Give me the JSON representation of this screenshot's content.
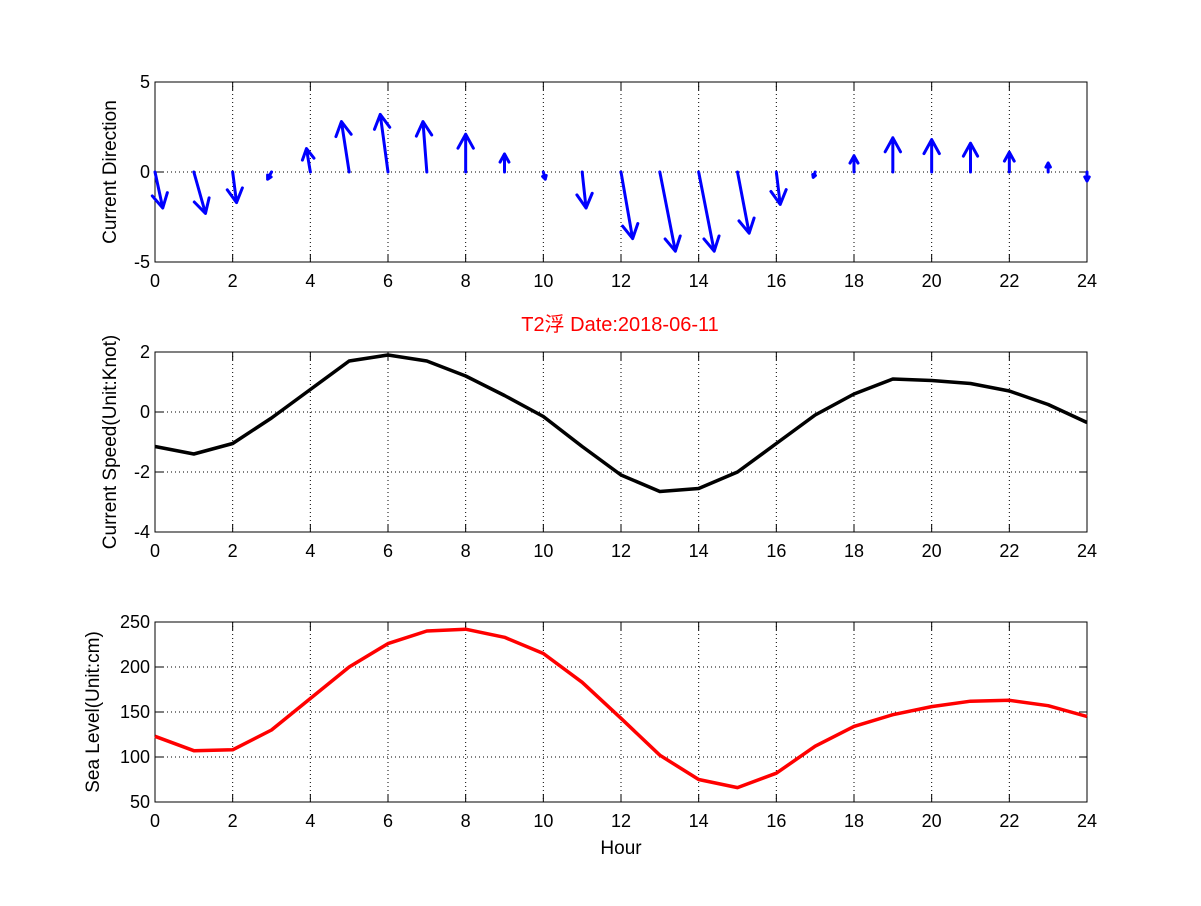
{
  "figure": {
    "title": "T2浮   Date:2018-06-11",
    "title_color": "#ff0000"
  },
  "chart_data": [
    {
      "type": "quiver",
      "ylabel": "Current Direction",
      "xlabel": "",
      "xlim": [
        0,
        24
      ],
      "ylim": [
        -5,
        5
      ],
      "xticks": [
        0,
        2,
        4,
        6,
        8,
        10,
        12,
        14,
        16,
        18,
        20,
        22,
        24
      ],
      "yticks": [
        -5,
        0,
        5
      ],
      "grid": true,
      "color": "#0000ff",
      "x": [
        0,
        1,
        2,
        3,
        4,
        5,
        6,
        7,
        8,
        9,
        10,
        11,
        12,
        13,
        14,
        15,
        16,
        17,
        18,
        19,
        20,
        21,
        22,
        23,
        24
      ],
      "u": [
        0.2,
        0.3,
        0.1,
        -0.1,
        -0.1,
        -0.2,
        -0.2,
        -0.1,
        0.0,
        0.0,
        0.05,
        0.1,
        0.3,
        0.4,
        0.4,
        0.3,
        0.1,
        -0.05,
        0.0,
        0.0,
        0.0,
        0.0,
        0.0,
        0.0,
        0.0
      ],
      "v": [
        -2.0,
        -2.3,
        -1.7,
        -0.4,
        1.3,
        2.8,
        3.2,
        2.8,
        2.1,
        1.0,
        -0.4,
        -2.0,
        -3.7,
        -4.4,
        -4.4,
        -3.4,
        -1.8,
        -0.3,
        0.9,
        1.9,
        1.8,
        1.6,
        1.1,
        0.5,
        -0.5
      ]
    },
    {
      "type": "line",
      "title": "T2浮   Date:2018-06-11",
      "ylabel": "Current Speed(Unit:Knot)",
      "xlabel": "",
      "xlim": [
        0,
        24
      ],
      "ylim": [
        -4,
        2
      ],
      "xticks": [
        0,
        2,
        4,
        6,
        8,
        10,
        12,
        14,
        16,
        18,
        20,
        22,
        24
      ],
      "yticks": [
        -4,
        -2,
        0,
        2
      ],
      "grid": true,
      "color": "#000000",
      "x": [
        0,
        1,
        2,
        3,
        4,
        5,
        6,
        7,
        8,
        9,
        10,
        11,
        12,
        13,
        14,
        15,
        16,
        17,
        18,
        19,
        20,
        21,
        22,
        23,
        24
      ],
      "y": [
        -1.15,
        -1.4,
        -1.05,
        -0.2,
        0.75,
        1.7,
        1.9,
        1.7,
        1.2,
        0.55,
        -0.15,
        -1.15,
        -2.1,
        -2.65,
        -2.55,
        -2.0,
        -1.05,
        -0.1,
        0.6,
        1.1,
        1.05,
        0.95,
        0.7,
        0.25,
        -0.35
      ]
    },
    {
      "type": "line",
      "ylabel": "Sea Level(Unit:cm)",
      "xlabel": "Hour",
      "xlim": [
        0,
        24
      ],
      "ylim": [
        50,
        250
      ],
      "xticks": [
        0,
        2,
        4,
        6,
        8,
        10,
        12,
        14,
        16,
        18,
        20,
        22,
        24
      ],
      "yticks": [
        50,
        100,
        150,
        200,
        250
      ],
      "grid": true,
      "color": "#ff0000",
      "x": [
        0,
        1,
        2,
        3,
        4,
        5,
        6,
        7,
        8,
        9,
        10,
        11,
        12,
        13,
        14,
        15,
        16,
        17,
        18,
        19,
        20,
        21,
        22,
        23,
        24
      ],
      "y": [
        123,
        107,
        108,
        130,
        165,
        200,
        226,
        240,
        242,
        233,
        215,
        183,
        143,
        102,
        75,
        66,
        82,
        112,
        134,
        147,
        156,
        162,
        163,
        157,
        145
      ]
    }
  ]
}
